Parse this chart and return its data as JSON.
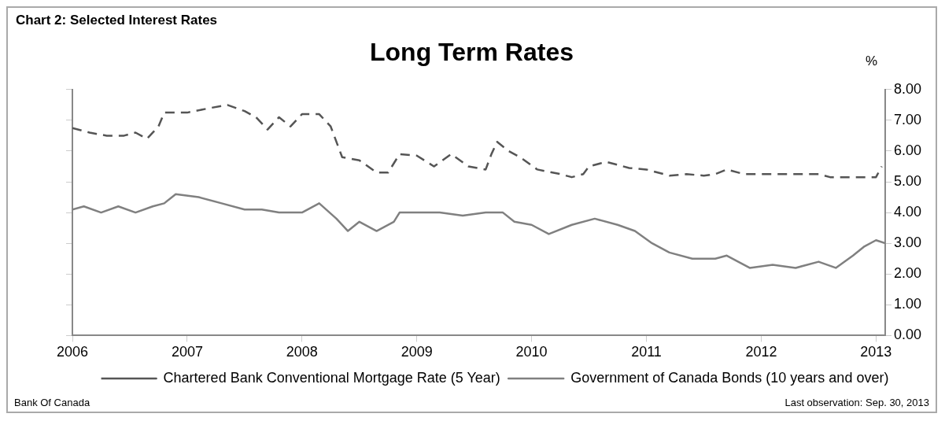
{
  "chart_data": {
    "type": "line",
    "title": "Chart 2: Selected Interest Rates",
    "subtitle": "Long Term Rates",
    "ylabel": "%",
    "xlim": [
      2006,
      2013.08
    ],
    "xticks": [
      2006,
      2007,
      2008,
      2009,
      2010,
      2011,
      2012,
      2013
    ],
    "ylim": [
      0,
      8
    ],
    "yticks": [
      {
        "value": 0,
        "label": "0.00"
      },
      {
        "value": 1,
        "label": "1.00"
      },
      {
        "value": 2,
        "label": "2.00"
      },
      {
        "value": 3,
        "label": "3.00"
      },
      {
        "value": 4,
        "label": "4.00"
      },
      {
        "value": 5,
        "label": "5.00"
      },
      {
        "value": 6,
        "label": "6.00"
      },
      {
        "value": 7,
        "label": "7.00"
      },
      {
        "value": 8,
        "label": "8.00"
      }
    ],
    "grid": false,
    "legend": "bottom",
    "series": [
      {
        "name": "Chartered Bank Conventional Mortgage Rate (5 Year)",
        "color": "#555555",
        "line_style": "dashed",
        "x": [
          2006,
          2006.15,
          2006.3,
          2006.45,
          2006.55,
          2006.65,
          2006.75,
          2006.8,
          2007,
          2007.2,
          2007.35,
          2007.5,
          2007.6,
          2007.7,
          2007.8,
          2007.9,
          2008,
          2008.15,
          2008.25,
          2008.35,
          2008.5,
          2008.65,
          2008.75,
          2008.85,
          2009,
          2009.15,
          2009.3,
          2009.45,
          2009.6,
          2009.65,
          2009.7,
          2009.8,
          2009.9,
          2010.05,
          2010.25,
          2010.35,
          2010.45,
          2010.5,
          2010.65,
          2010.85,
          2011,
          2011.2,
          2011.35,
          2011.5,
          2011.6,
          2011.7,
          2011.85,
          2012,
          2012.5,
          2012.6,
          2013,
          2013.05
        ],
        "values": [
          6.75,
          6.6,
          6.5,
          6.5,
          6.6,
          6.4,
          6.8,
          7.25,
          7.25,
          7.4,
          7.5,
          7.3,
          7.1,
          6.7,
          7.1,
          6.8,
          7.2,
          7.2,
          6.8,
          5.8,
          5.7,
          5.3,
          5.3,
          5.9,
          5.85,
          5.5,
          5.9,
          5.5,
          5.4,
          5.9,
          6.3,
          6,
          5.8,
          5.4,
          5.25,
          5.15,
          5.25,
          5.5,
          5.65,
          5.45,
          5.4,
          5.2,
          5.25,
          5.2,
          5.25,
          5.4,
          5.25,
          5.25,
          5.25,
          5.15,
          5.15,
          5.5
        ]
      },
      {
        "name": "Government of Canada Bonds (10 years and over)",
        "color": "#808080",
        "line_style": "solid",
        "x": [
          2006,
          2006.1,
          2006.25,
          2006.4,
          2006.55,
          2006.7,
          2006.8,
          2006.9,
          2007.1,
          2007.3,
          2007.5,
          2007.65,
          2007.8,
          2008,
          2008.15,
          2008.3,
          2008.4,
          2008.5,
          2008.65,
          2008.8,
          2008.85,
          2009.2,
          2009.4,
          2009.6,
          2009.75,
          2009.85,
          2010,
          2010.15,
          2010.35,
          2010.55,
          2010.75,
          2010.9,
          2011.05,
          2011.2,
          2011.4,
          2011.6,
          2011.7,
          2011.9,
          2012.1,
          2012.3,
          2012.5,
          2012.65,
          2012.8,
          2012.9,
          2013,
          2013.08
        ],
        "values": [
          4.1,
          4.2,
          4,
          4.2,
          4,
          4.2,
          4.3,
          4.6,
          4.5,
          4.3,
          4.1,
          4.1,
          4,
          4,
          4.3,
          3.8,
          3.4,
          3.7,
          3.4,
          3.7,
          4,
          4,
          3.9,
          4,
          4,
          3.7,
          3.6,
          3.3,
          3.6,
          3.8,
          3.6,
          3.4,
          3,
          2.7,
          2.5,
          2.5,
          2.6,
          2.2,
          2.3,
          2.2,
          2.4,
          2.2,
          2.6,
          2.9,
          3.1,
          3
        ]
      }
    ],
    "annotations": [
      "Bank Of Canada",
      "Last observation: Sep. 30, 2013"
    ]
  }
}
